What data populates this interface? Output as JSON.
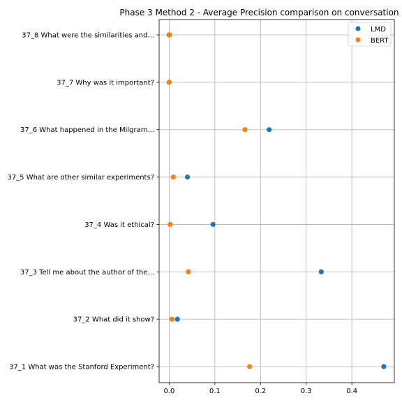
{
  "chart_data": {
    "type": "scatter",
    "title": "Phase 3 Method 2 - Average Precision comparison on conversation 37",
    "xlabel": "",
    "ylabel": "",
    "categories": [
      "37_1 What was the Stanford Experiment?",
      "37_2 What did it show?",
      "37_3 Tell me about the author of the...",
      "37_4 Was it ethical?",
      "37_5 What are other similar experiments?",
      "37_6 What happened in the Milgram...",
      "37_7 Why was it important?",
      "37_8 What were the similarities and..."
    ],
    "series": [
      {
        "name": "LMD",
        "color": "#1f77b4",
        "values": [
          0.47,
          0.018,
          0.333,
          0.096,
          0.04,
          0.219,
          0.0,
          0.0
        ]
      },
      {
        "name": "BERT",
        "color": "#ff7f0e",
        "values": [
          0.176,
          0.006,
          0.042,
          0.002,
          0.009,
          0.166,
          0.0,
          0.001
        ]
      }
    ],
    "xticks": [
      "0.0",
      "0.1",
      "0.2",
      "0.3",
      "0.4"
    ],
    "xlim": [
      -0.022,
      0.493
    ],
    "grid": true,
    "legend_position": "top-right"
  }
}
